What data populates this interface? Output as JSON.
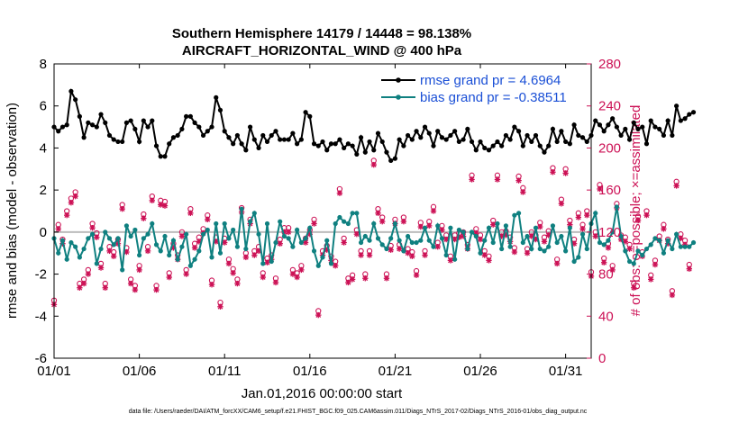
{
  "chart_data": {
    "type": "line",
    "title": "Southern Hemisphere 14179 / 14448 = 98.138%",
    "subtitle": "AIRCRAFT_HORIZONTAL_WIND @ 400 hPa",
    "xlabel": "Jan.01,2016 00:00:00 start",
    "ylabel_left": "rmse and bias (model - observation)",
    "ylabel_right": "# of obs: o=possible; ×=assimilated",
    "footer": "data file: /Users/raeder/DAI/ATM_forcXX/CAM6_setup/f.e21.FHIST_BGC.f09_025.CAM6assim.011/Diags_NTrS_2017-02/Diags_NTrS_2016-01/obs_diag_output.nc",
    "xlim": [
      0,
      31.5
    ],
    "ylim_left": [
      -6,
      8
    ],
    "ylim_right": [
      0,
      280
    ],
    "x_ticks": [
      {
        "value": 0,
        "label": "01/01"
      },
      {
        "value": 5,
        "label": "01/06"
      },
      {
        "value": 10,
        "label": "01/11"
      },
      {
        "value": 15,
        "label": "01/16"
      },
      {
        "value": 20,
        "label": "01/21"
      },
      {
        "value": 25,
        "label": "01/26"
      },
      {
        "value": 30,
        "label": "01/31"
      }
    ],
    "y_ticks_left": [
      "-6",
      "-4",
      "-2",
      "0",
      "2",
      "4",
      "6",
      "8"
    ],
    "y_ticks_right": [
      "0",
      "40",
      "80",
      "120",
      "160",
      "200",
      "240",
      "280"
    ],
    "legend": [
      {
        "name": "rmse grand pr = 4.6964",
        "color": "#000000"
      },
      {
        "name": "bias grand pr = -0.38511",
        "color": "#0f8080"
      }
    ],
    "colors": {
      "rmse": "#000000",
      "bias": "#0f8080",
      "obs": "#cc1155",
      "zero_line": "#bbbbbb"
    },
    "x_step": 0.25,
    "series": [
      {
        "name": "rmse",
        "values": [
          5.0,
          4.8,
          5.0,
          5.1,
          6.7,
          6.3,
          5.5,
          4.5,
          5.2,
          5.1,
          5.0,
          5.6,
          5.2,
          4.6,
          4.4,
          4.3,
          4.3,
          5.2,
          5.3,
          4.9,
          4.3,
          5.3,
          5.0,
          5.3,
          4.1,
          3.6,
          3.6,
          4.2,
          4.5,
          4.6,
          4.9,
          5.5,
          5.5,
          5.2,
          5.0,
          4.6,
          4.8,
          5.0,
          6.4,
          5.8,
          4.8,
          4.5,
          4.2,
          4.6,
          4.2,
          3.9,
          5.0,
          4.4,
          4.0,
          4.6,
          4.3,
          4.6,
          4.8,
          4.4,
          4.4,
          4.4,
          4.7,
          4.2,
          4.4,
          5.7,
          5.5,
          4.2,
          4.1,
          4.3,
          3.9,
          4.2,
          4.2,
          4.4,
          4.0,
          4.2,
          4.1,
          3.7,
          4.5,
          3.8,
          4.3,
          3.9,
          4.7,
          4.3,
          3.8,
          3.4,
          3.5,
          4.4,
          4.1,
          4.6,
          4.4,
          4.8,
          4.5,
          5.0,
          4.7,
          4.1,
          4.8,
          4.5,
          4.4,
          4.6,
          4.8,
          4.3,
          4.4,
          4.9,
          4.3,
          3.9,
          4.3,
          4.0,
          3.9,
          4.1,
          4.3,
          4.1,
          4.6,
          4.4,
          5.0,
          4.8,
          4.1,
          4.6,
          4.3,
          4.6,
          4.1,
          3.8,
          4.1,
          4.9,
          4.3,
          4.8,
          4.3,
          4.2,
          5.1,
          4.6,
          4.5,
          4.3,
          4.6,
          5.3,
          5.1,
          4.8,
          5.1,
          5.4,
          5.0,
          4.6,
          4.9,
          4.4,
          5.2,
          4.9,
          5.0,
          4.2,
          5.3,
          5.0,
          4.9,
          4.6,
          5.3,
          4.6,
          6.0,
          5.3,
          5.4,
          5.6,
          5.7
        ]
      },
      {
        "name": "bias",
        "values": [
          -0.3,
          -1.0,
          -0.4,
          -1.3,
          -0.5,
          -0.7,
          -1.2,
          -0.8,
          -0.3,
          -0.1,
          -1.5,
          -0.8,
          0.0,
          -0.3,
          -0.6,
          -0.3,
          -1.8,
          0.3,
          -0.2,
          0.1,
          -1.1,
          -0.3,
          -0.1,
          0.4,
          -0.6,
          -0.9,
          -0.2,
          -1.1,
          -0.4,
          -1.3,
          -0.7,
          -0.1,
          -1.6,
          -1.3,
          -0.9,
          -0.1,
          0.1,
          -1.2,
          0.4,
          -1.0,
          0.4,
          -0.3,
          0.1,
          -0.7,
          1.1,
          -0.8,
          0.5,
          0.9,
          -0.1,
          -1.5,
          0.4,
          -1.4,
          -0.5,
          0.5,
          -0.2,
          -0.3,
          -0.7,
          0.1,
          -0.5,
          -0.3,
          0.2,
          -0.9,
          -1.6,
          -1.2,
          -0.4,
          -1.5,
          0.4,
          0.7,
          0.5,
          0.4,
          0.9,
          0.9,
          -0.5,
          -0.2,
          -0.4,
          0.4,
          -0.3,
          -0.6,
          -0.8,
          -0.3,
          0.4,
          -0.4,
          -0.9,
          -0.2,
          -0.5,
          -0.5,
          -0.4,
          0.2,
          -0.4,
          -0.7,
          0.3,
          -0.3,
          -1.1,
          0.2,
          -1.3,
          0.1,
          0.0,
          -0.8,
          0.0,
          -0.2,
          -1.0,
          -0.4,
          0.2,
          -0.5,
          0.4,
          -0.8,
          0.3,
          -0.7,
          0.8,
          0.9,
          -0.5,
          -0.2,
          -0.8,
          0.2,
          -0.8,
          -0.9,
          -0.7,
          0.3,
          -0.5,
          -0.2,
          -0.9,
          0.2,
          -1.4,
          -1.2,
          -0.1,
          -0.8,
          0.4,
          0.9,
          -0.5,
          -0.6,
          -0.4,
          0.0,
          1.2,
          -0.2,
          -0.9,
          -1.4,
          -1.5,
          -0.9,
          -1.1,
          -0.8,
          -0.6,
          -0.3,
          -0.4,
          -1.0,
          -0.4,
          -0.8,
          -0.1,
          -0.7,
          -0.7,
          -0.7,
          -0.5
        ]
      },
      {
        "name": "obs_possible",
        "values": [
          55,
          127,
          113,
          140,
          152,
          158,
          71,
          75,
          84,
          128,
          119,
          90,
          71,
          106,
          101,
          113,
          146,
          105,
          75,
          69,
          88,
          137,
          106,
          154,
          69,
          150,
          149,
          81,
          109,
          98,
          120,
          84,
          142,
          109,
          115,
          123,
          136,
          74,
          115,
          53,
          114,
          94,
          85,
          75,
          143,
          100,
          132,
          102,
          106,
          81,
          95,
          98,
          76,
          113,
          124,
          124,
          84,
          81,
          88,
          114,
          122,
          132,
          45,
          102,
          107,
          97,
          92,
          161,
          114,
          76,
          79,
          122,
          102,
          80,
          102,
          188,
          142,
          134,
          80,
          107,
          132,
          108,
          134,
          104,
          101,
          83,
          129,
          102,
          130,
          144,
          110,
          126,
          117,
          97,
          117,
          119,
          120,
          108,
          174,
          123,
          117,
          102,
          97,
          131,
          174,
          120,
          121,
          115,
          105,
          173,
          162,
          104,
          120,
          117,
          129,
          115,
          121,
          181,
          94,
          151,
          180,
          131,
          113,
          138,
          127,
          140,
          82,
          120,
          165,
          95,
          109,
          88,
          147,
          117,
          115,
          108,
          71,
          135,
          101,
          140,
          79,
          93,
          116,
          127,
          113,
          64,
          168,
          118,
          112,
          89
        ]
      },
      {
        "name": "obs_assimilated",
        "values": [
          51,
          123,
          109,
          136,
          148,
          154,
          67,
          71,
          80,
          124,
          115,
          86,
          67,
          102,
          97,
          109,
          142,
          101,
          71,
          65,
          84,
          133,
          102,
          150,
          65,
          146,
          145,
          77,
          105,
          94,
          116,
          80,
          138,
          105,
          111,
          119,
          132,
          70,
          111,
          49,
          110,
          90,
          81,
          71,
          139,
          96,
          128,
          98,
          102,
          77,
          91,
          94,
          72,
          109,
          120,
          120,
          80,
          77,
          84,
          110,
          118,
          128,
          41,
          98,
          103,
          93,
          88,
          157,
          110,
          72,
          75,
          118,
          98,
          76,
          98,
          184,
          138,
          130,
          76,
          103,
          128,
          104,
          130,
          100,
          97,
          79,
          125,
          98,
          126,
          140,
          106,
          122,
          113,
          93,
          113,
          115,
          116,
          104,
          170,
          119,
          113,
          98,
          93,
          127,
          170,
          116,
          117,
          111,
          101,
          169,
          158,
          100,
          116,
          113,
          125,
          111,
          117,
          177,
          90,
          147,
          176,
          127,
          109,
          134,
          123,
          136,
          78,
          116,
          161,
          91,
          105,
          84,
          143,
          113,
          111,
          104,
          67,
          131,
          97,
          136,
          75,
          89,
          112,
          123,
          109,
          60,
          164,
          114,
          108,
          85
        ]
      }
    ]
  }
}
